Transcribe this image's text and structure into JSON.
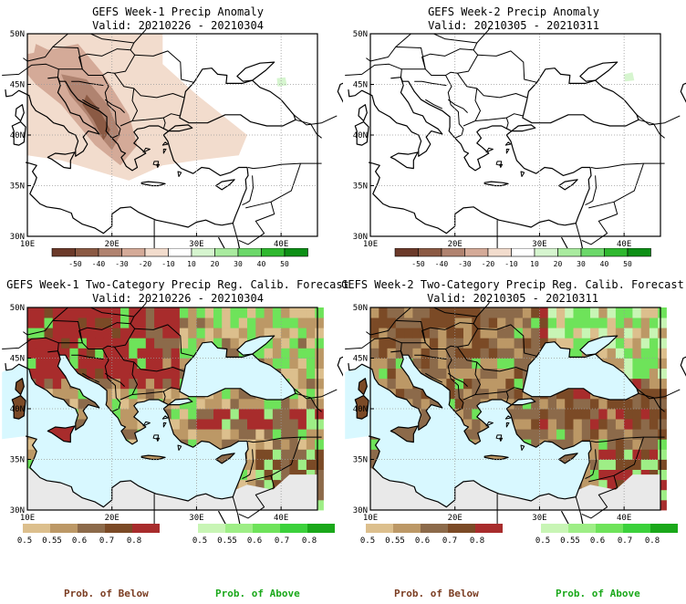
{
  "panels": [
    {
      "id": "p1",
      "title": "GEFS Week-1 Precip Anomaly",
      "valid": "Valid: 20210226 - 20210304"
    },
    {
      "id": "p2",
      "title": "GEFS Week-2 Precip Anomaly",
      "valid": "Valid: 20210305 - 20210311"
    },
    {
      "id": "p3",
      "title": "GEFS Week-1 Two-Category Precip Reg. Calib. Forecast",
      "valid": "Valid: 20210226 - 20210304"
    },
    {
      "id": "p4",
      "title": "GEFS Week-2 Two-Category Precip Reg. Calib. Forecast",
      "valid": "Valid: 20210305 - 20210311"
    }
  ],
  "axes": {
    "lat_labels": [
      "50N",
      "45N",
      "40N",
      "35N",
      "30N"
    ],
    "lon_labels": [
      "10E",
      "20E",
      "30E",
      "40E"
    ]
  },
  "anomaly_colorbar": {
    "labels": [
      "-50",
      "-40",
      "-30",
      "-20",
      "-10",
      "10",
      "20",
      "30",
      "40",
      "50"
    ],
    "colors": [
      "#6b3a2a",
      "#8b5a44",
      "#b08370",
      "#d4aa98",
      "#f2dccd",
      "#ffffff",
      "#d6f5cf",
      "#a9eb9f",
      "#6cd86a",
      "#2fb82f",
      "#0d8f16"
    ]
  },
  "prob_colorbar": {
    "below_labels": [
      "0.5",
      "0.55",
      "0.6",
      "0.7",
      "0.8"
    ],
    "above_labels": [
      "0.5",
      "0.55",
      "0.6",
      "0.7",
      "0.8"
    ],
    "below_colors": [
      "#dcbf8d",
      "#bc9866",
      "#8c6a4a",
      "#7b4a26",
      "#a82c2c"
    ],
    "above_colors": [
      "#c8f5b5",
      "#9eee86",
      "#6ee35a",
      "#3bd13b",
      "#1aa81a"
    ],
    "below_label": "Prob. of Below",
    "above_label": "Prob. of Above",
    "below_text_color": "#7b3d22",
    "above_text_color": "#1aa81a"
  },
  "map_colors": {
    "sea": "#d8f8ff",
    "land_gray": "#e9e9e9",
    "brown_dark": "#7b4a26",
    "brown_mid": "#8c6a4a",
    "tan": "#bc9866",
    "red": "#a82c2c",
    "green": "#6ee35a"
  }
}
